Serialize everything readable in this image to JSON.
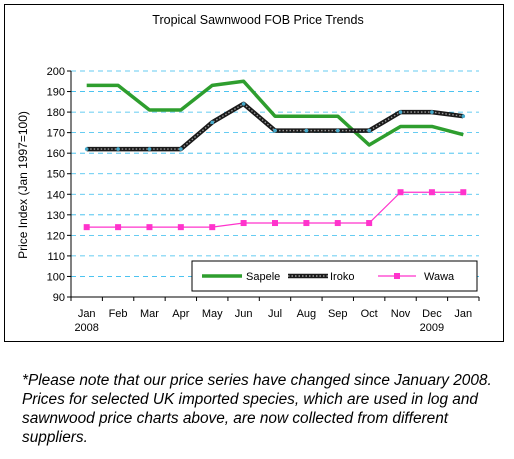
{
  "chart_data": {
    "type": "line",
    "title": "Tropical Sawnwood FOB Price Trends",
    "ylabel": "Price Index (Jan 1997=100)",
    "xlabel": "",
    "categories": [
      "Jan",
      "Feb",
      "Mar",
      "Apr",
      "May",
      "Jun",
      "Jul",
      "Aug",
      "Sep",
      "Oct",
      "Nov",
      "Dec",
      "Jan"
    ],
    "year_labels": [
      {
        "index": 0,
        "label": "2008"
      },
      {
        "index": 11,
        "label": "2009"
      }
    ],
    "ylim": [
      90,
      200
    ],
    "yticks": [
      90,
      100,
      110,
      120,
      130,
      140,
      150,
      160,
      170,
      180,
      190,
      200
    ],
    "grid": "horizontal dashed",
    "legend_position": "bottom-right inside plot",
    "series": [
      {
        "name": "Sapele",
        "color": "#2e9e2e",
        "style": "thick",
        "values": [
          193,
          193,
          181,
          181,
          193,
          195,
          178,
          178,
          178,
          164,
          173,
          173,
          169
        ]
      },
      {
        "name": "Iroko",
        "color": "#1a1a1a",
        "style": "thick-dotted",
        "values": [
          162,
          162,
          162,
          162,
          175,
          184,
          171,
          171,
          171,
          171,
          180,
          180,
          178
        ]
      },
      {
        "name": "Wawa",
        "color": "#ff33cc",
        "style": "thin-square-markers",
        "values": [
          124,
          124,
          124,
          124,
          124,
          126,
          126,
          126,
          126,
          126,
          141,
          141,
          141
        ]
      }
    ]
  },
  "legend_labels": [
    "Sapele",
    "Iroko",
    "Wawa"
  ],
  "footnote": "*Please note that our price series have changed since January 2008. Prices for selected UK imported species, which are used in log and sawnwood price charts above, are now collected from different suppliers."
}
